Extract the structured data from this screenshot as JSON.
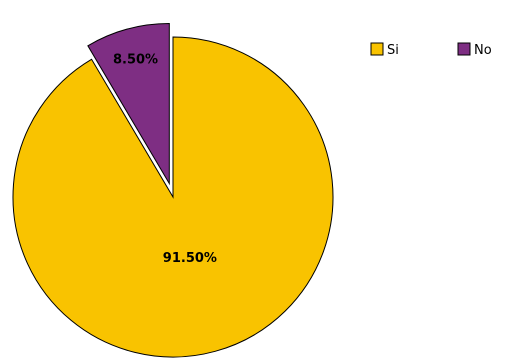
{
  "chart_data": {
    "type": "pie",
    "categories": [
      "Si",
      "No"
    ],
    "values": [
      91.5,
      8.5
    ],
    "labels": [
      "91.50%",
      "8.50%"
    ],
    "exploded": [
      false,
      true
    ],
    "colors": [
      "#F9C300",
      "#7E2E83"
    ],
    "legend": {
      "placement": "top-right",
      "entries": [
        "Si",
        "No"
      ]
    }
  }
}
